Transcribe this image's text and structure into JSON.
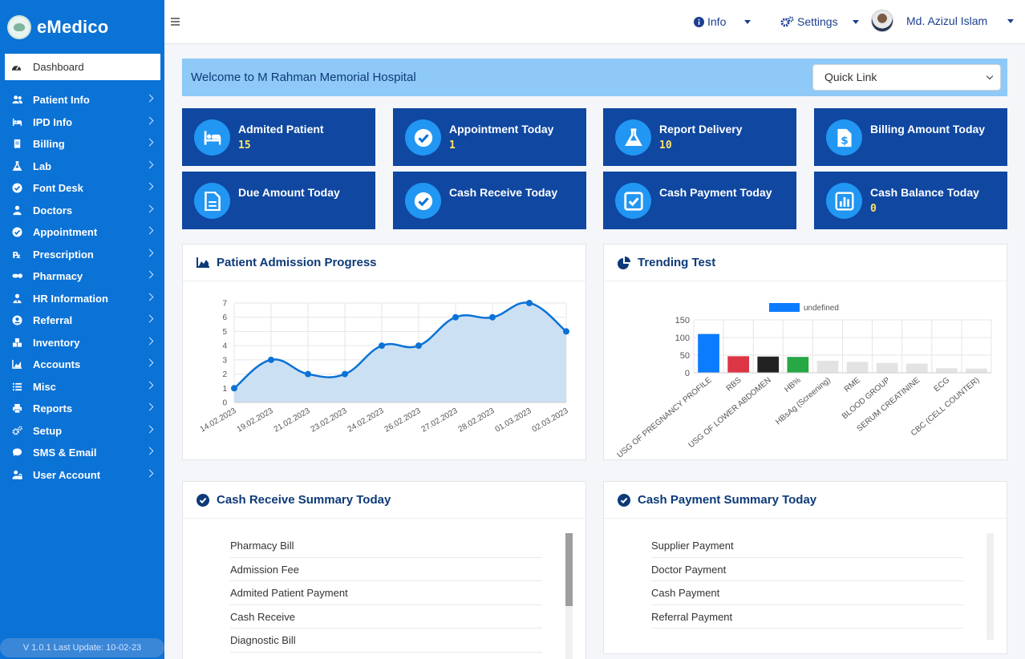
{
  "brand": {
    "name": "eMedico"
  },
  "sidebar": {
    "dashboard": "Dashboard",
    "items": [
      {
        "label": "Patient Info",
        "icon": "users-icon"
      },
      {
        "label": "IPD Info",
        "icon": "bed-icon"
      },
      {
        "label": "Billing",
        "icon": "receipt-icon"
      },
      {
        "label": "Lab",
        "icon": "flask-icon"
      },
      {
        "label": "Font Desk",
        "icon": "check-circle-icon"
      },
      {
        "label": "Doctors",
        "icon": "doctor-icon"
      },
      {
        "label": "Appointment",
        "icon": "check-circle-icon"
      },
      {
        "label": "Prescription",
        "icon": "rx-icon"
      },
      {
        "label": "Pharmacy",
        "icon": "pills-icon"
      },
      {
        "label": "HR Information",
        "icon": "user-tie-icon"
      },
      {
        "label": "Referral",
        "icon": "user-circle-icon"
      },
      {
        "label": "Inventory",
        "icon": "boxes-icon"
      },
      {
        "label": "Accounts",
        "icon": "chart-area-icon"
      },
      {
        "label": "Misc",
        "icon": "list-icon"
      },
      {
        "label": "Reports",
        "icon": "print-icon"
      },
      {
        "label": "Setup",
        "icon": "cogs-icon"
      },
      {
        "label": "SMS & Email",
        "icon": "comment-icon"
      },
      {
        "label": "User Account",
        "icon": "user-lock-icon"
      }
    ],
    "version": "V 1.0.1 Last Update: 10-02-23"
  },
  "topbar": {
    "info": "Info",
    "settings": "Settings",
    "user": "Md. Azizul Islam"
  },
  "welcome": {
    "text": "Welcome to M Rahman Memorial Hospital",
    "quick_link": "Quick Link"
  },
  "tiles": [
    {
      "label": "Admited Patient",
      "value": "15",
      "icon": "bed-icon"
    },
    {
      "label": "Appointment Today",
      "value": "1",
      "icon": "check-circle-icon"
    },
    {
      "label": "Report Delivery",
      "value": "10",
      "icon": "flask-icon"
    },
    {
      "label": "Billing Amount Today",
      "value": "",
      "icon": "invoice-dollar-icon"
    },
    {
      "label": "Due Amount Today",
      "value": "",
      "icon": "file-icon"
    },
    {
      "label": "Cash Receive Today",
      "value": "",
      "icon": "check-circle-icon"
    },
    {
      "label": "Cash Payment Today",
      "value": "",
      "icon": "check-square-icon"
    },
    {
      "label": "Cash Balance Today",
      "value": "0",
      "icon": "chart-bar-icon"
    }
  ],
  "admission": {
    "title": "Patient Admission Progress"
  },
  "trending": {
    "title": "Trending Test"
  },
  "chart_data": [
    {
      "type": "area",
      "title": "Patient Admission Progress",
      "x": [
        "14.02.2023",
        "19.02.2023",
        "21.02.2023",
        "23.02.2023",
        "24.02.2023",
        "26.02.2023",
        "27.02.2023",
        "28.02.2023",
        "01.03.2023",
        "02.03.2023"
      ],
      "series": [
        {
          "values": [
            1,
            3,
            2,
            2,
            4,
            4,
            6,
            6,
            7,
            5
          ]
        }
      ],
      "ylim": [
        0,
        7
      ],
      "yticks": [
        0,
        1,
        2,
        3,
        4,
        5,
        6,
        7
      ],
      "grid": true,
      "color": "#0b72d6",
      "fill": "#c9def3"
    },
    {
      "type": "bar",
      "title": "Trending Test",
      "legend": "undefined",
      "legend_position": "top",
      "categories": [
        "USG OF PREGNANCY PROFILE",
        "RBS",
        "USG OF LOWER ABDOMEN",
        "HB%",
        "HBsAg (Screening)",
        "RME",
        "BLOOD GROUP",
        "SERUM CREATININE",
        "ECG",
        "CBC (CELL COUNTER)"
      ],
      "values": [
        110,
        47,
        46,
        45,
        34,
        31,
        28,
        26,
        13,
        12
      ],
      "colors": [
        "#0b7bff",
        "#dc3545",
        "#222222",
        "#28a745",
        "#e3e3e3",
        "#e3e3e3",
        "#e3e3e3",
        "#e3e3e3",
        "#e3e3e3",
        "#e3e3e3"
      ],
      "ylim": [
        0,
        150
      ],
      "yticks": [
        0,
        50,
        100,
        150
      ],
      "grid": true
    }
  ],
  "cash_receive": {
    "title": "Cash Receive Summary Today",
    "rows": [
      "Pharmacy Bill",
      "Admission Fee",
      "Admited Patient Payment",
      "Cash Receive",
      "Diagnostic Bill"
    ]
  },
  "cash_payment": {
    "title": "Cash Payment Summary Today",
    "rows": [
      "Supplier Payment",
      "Doctor Payment",
      "Cash Payment",
      "Referral Payment"
    ]
  }
}
